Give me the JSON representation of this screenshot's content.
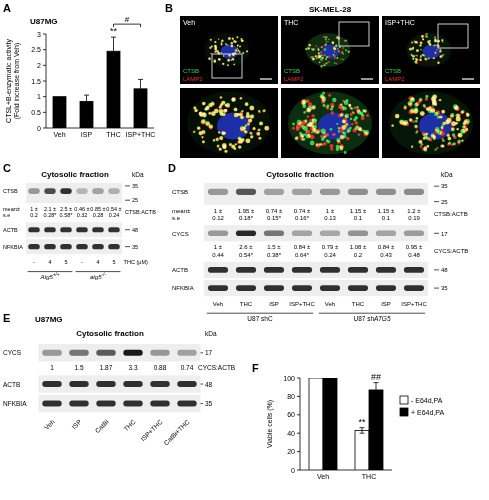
{
  "chart_data": [
    {
      "panel": "A",
      "type": "bar",
      "title": "U87MG",
      "ylabel": [
        "CTSL+B-enzymatic activity",
        "(Fold increase from Veh)"
      ],
      "categories": [
        "Veh",
        "ISP",
        "THC",
        "ISP+THC"
      ],
      "values": [
        1,
        0.85,
        2.45,
        1.25
      ],
      "errors": [
        null,
        0.2,
        0.45,
        0.3
      ],
      "annotations": [
        null,
        null,
        "**",
        null
      ],
      "comparisons": [
        {
          "between": [
            "THC",
            "ISP+THC"
          ],
          "label": "#"
        }
      ],
      "color": "#000000",
      "ylim": [
        0,
        3
      ],
      "yticks": [
        0,
        0.5,
        1,
        1.5,
        2,
        2.5,
        3
      ]
    },
    {
      "panel": "F",
      "type": "bar",
      "ylabel": [
        "Viable cells (%)"
      ],
      "categories": [
        "Veh",
        "THC"
      ],
      "series": [
        {
          "name": "- E64d,PA",
          "color": "#ffffff",
          "values": [
            100,
            43
          ],
          "errors": [
            null,
            3
          ],
          "annotations": [
            null,
            "**"
          ]
        },
        {
          "name": "+ E64d,PA",
          "color": "#000000",
          "values": [
            100,
            87
          ],
          "errors": [
            null,
            8
          ],
          "annotations": [
            null,
            "##"
          ]
        }
      ],
      "ylim": [
        0,
        100
      ],
      "yticks": [
        0,
        20,
        40,
        60,
        80,
        100
      ],
      "legend": "right"
    }
  ],
  "micrographs": {
    "panel": "B",
    "title": "SK-MEL-28",
    "images": [
      "Veh",
      "THC",
      "ISP+THC"
    ],
    "channels": [
      {
        "name": "CTSB",
        "color": "#35d04a"
      },
      {
        "name": "LAMP2",
        "color": "#e8302a"
      }
    ]
  },
  "blots": [
    {
      "panel": "C",
      "header": "Cytosolic fraction",
      "kda": "kDa",
      "quant_header": [
        "mean±",
        "s.e"
      ],
      "rows": [
        {
          "name": "CTSB",
          "markers": [
            35,
            25
          ],
          "quant": {
            "label": "CTSB:ACTB",
            "values": [
              [
                "1 ±",
                "0.2"
              ],
              [
                "2.1 ±",
                "0.28*"
              ],
              [
                "2.5 ±",
                "0.58*"
              ],
              [
                "0.46 ±",
                "0.32"
              ],
              [
                "0.85 ±",
                "0.28"
              ],
              [
                "0.54 ±",
                "0.24"
              ]
            ]
          }
        },
        {
          "name": "ACTB",
          "markers": [
            48
          ]
        },
        {
          "name": "NFKBIA",
          "markers": [
            35
          ]
        }
      ],
      "lanes": [
        "-",
        4,
        5,
        "-",
        4,
        5
      ],
      "lanes_label": "THC (μM)",
      "groups": [
        {
          "label": "Atg5",
          "sup": "+/+"
        },
        {
          "label": "atg5",
          "sup": "-/-"
        }
      ]
    },
    {
      "panel": "D",
      "header": "Cytosolic fraction",
      "kda": "kDa",
      "quant_header": [
        "mean±",
        "s.e"
      ],
      "rows": [
        {
          "name": "CTSB",
          "markers": [
            35,
            25
          ],
          "quant": {
            "label": "CTSB:ACTB",
            "values": [
              [
                "1 ±",
                "0.12"
              ],
              [
                "1.95 ±",
                "0.18*"
              ],
              [
                "0.74 ±",
                "0.15*"
              ],
              [
                "0.74 ±",
                "0.16*"
              ],
              [
                "1 ±",
                "0.13"
              ],
              [
                "1.15 ±",
                "0.1"
              ],
              [
                "1.15 ±",
                "0.1"
              ],
              [
                "1.2 ±",
                "0.19"
              ]
            ]
          }
        },
        {
          "name": "CYCS",
          "markers": [
            17
          ],
          "quant": {
            "label": "CYCS:ACTB",
            "values": [
              [
                "1 ±",
                "0.44"
              ],
              [
                "2.6 ±",
                "0.54*"
              ],
              [
                "1.5 ±",
                "0.38*"
              ],
              [
                "0.84 ±",
                "0.64*"
              ],
              [
                "0.79 ±",
                "0.24"
              ],
              [
                "1.08 ±",
                "0.2"
              ],
              [
                "0.84 ±",
                "0.43"
              ],
              [
                "0.95 ±",
                "0.48"
              ]
            ]
          }
        },
        {
          "name": "ACTB",
          "markers": [
            48
          ]
        },
        {
          "name": "NFKBIA",
          "markers": [
            35
          ]
        }
      ],
      "lanes": [
        "Veh",
        "THC",
        "ISP",
        "ISP+THC",
        "Veh",
        "THC",
        "ISP",
        "ISP+THC"
      ],
      "groups": [
        {
          "label": "U87 shC"
        },
        {
          "label": "U87 sh",
          "italic": "ATG5"
        }
      ]
    },
    {
      "panel": "E",
      "title": "U87MG",
      "header": "Cytosolic fraction",
      "kda": "kDa",
      "rows": [
        {
          "name": "CYCS",
          "markers": [
            17
          ],
          "quant": {
            "label": "CYCS:ACTB",
            "values": [
              1,
              1.5,
              1.87,
              3.3,
              0.88,
              0.74
            ]
          }
        },
        {
          "name": "ACTB",
          "markers": [
            48
          ]
        },
        {
          "name": "NFKBIA",
          "markers": [
            35
          ]
        }
      ],
      "lanes": [
        "Veh",
        "ISP",
        "CatBi",
        "THC",
        "ISP+THC",
        "CatBi+THC"
      ]
    }
  ]
}
